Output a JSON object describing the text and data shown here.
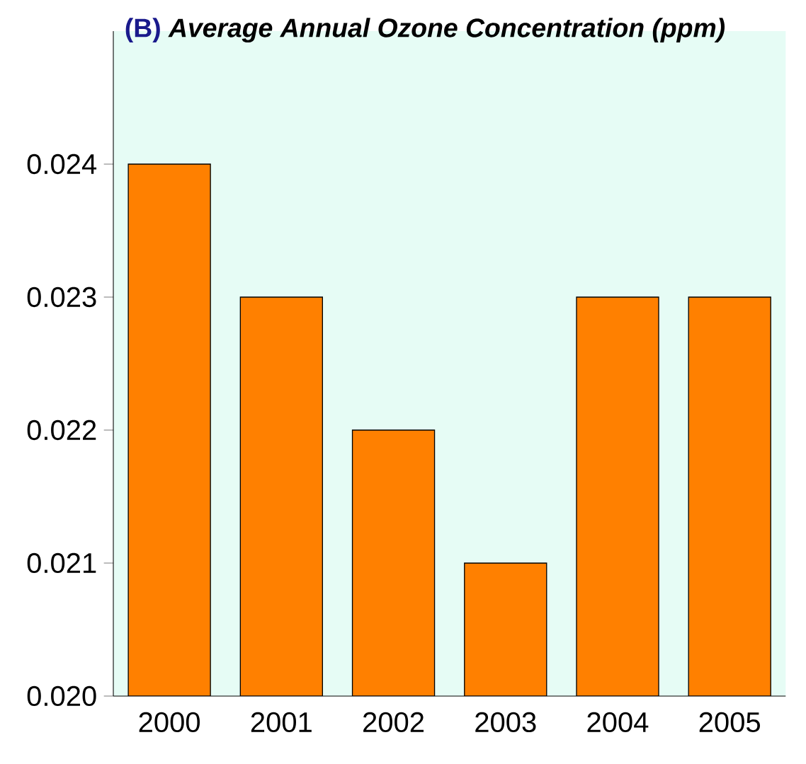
{
  "chart_data": {
    "type": "bar",
    "title": "Average Annual Ozone Concentration (ppm)",
    "annotations": [
      "(B)"
    ],
    "categories": [
      "2000",
      "2001",
      "2002",
      "2003",
      "2004",
      "2005"
    ],
    "values": [
      0.024,
      0.023,
      0.022,
      0.021,
      0.023,
      0.023
    ],
    "color": "#ff8000",
    "ylim": [
      0.02,
      0.025
    ],
    "yticks": [
      {
        "value": 0.02,
        "label": "0.020"
      },
      {
        "value": 0.021,
        "label": "0.021"
      },
      {
        "value": 0.022,
        "label": "0.022"
      },
      {
        "value": 0.023,
        "label": "0.023"
      },
      {
        "value": 0.024,
        "label": "0.024"
      }
    ],
    "relative": false
  }
}
